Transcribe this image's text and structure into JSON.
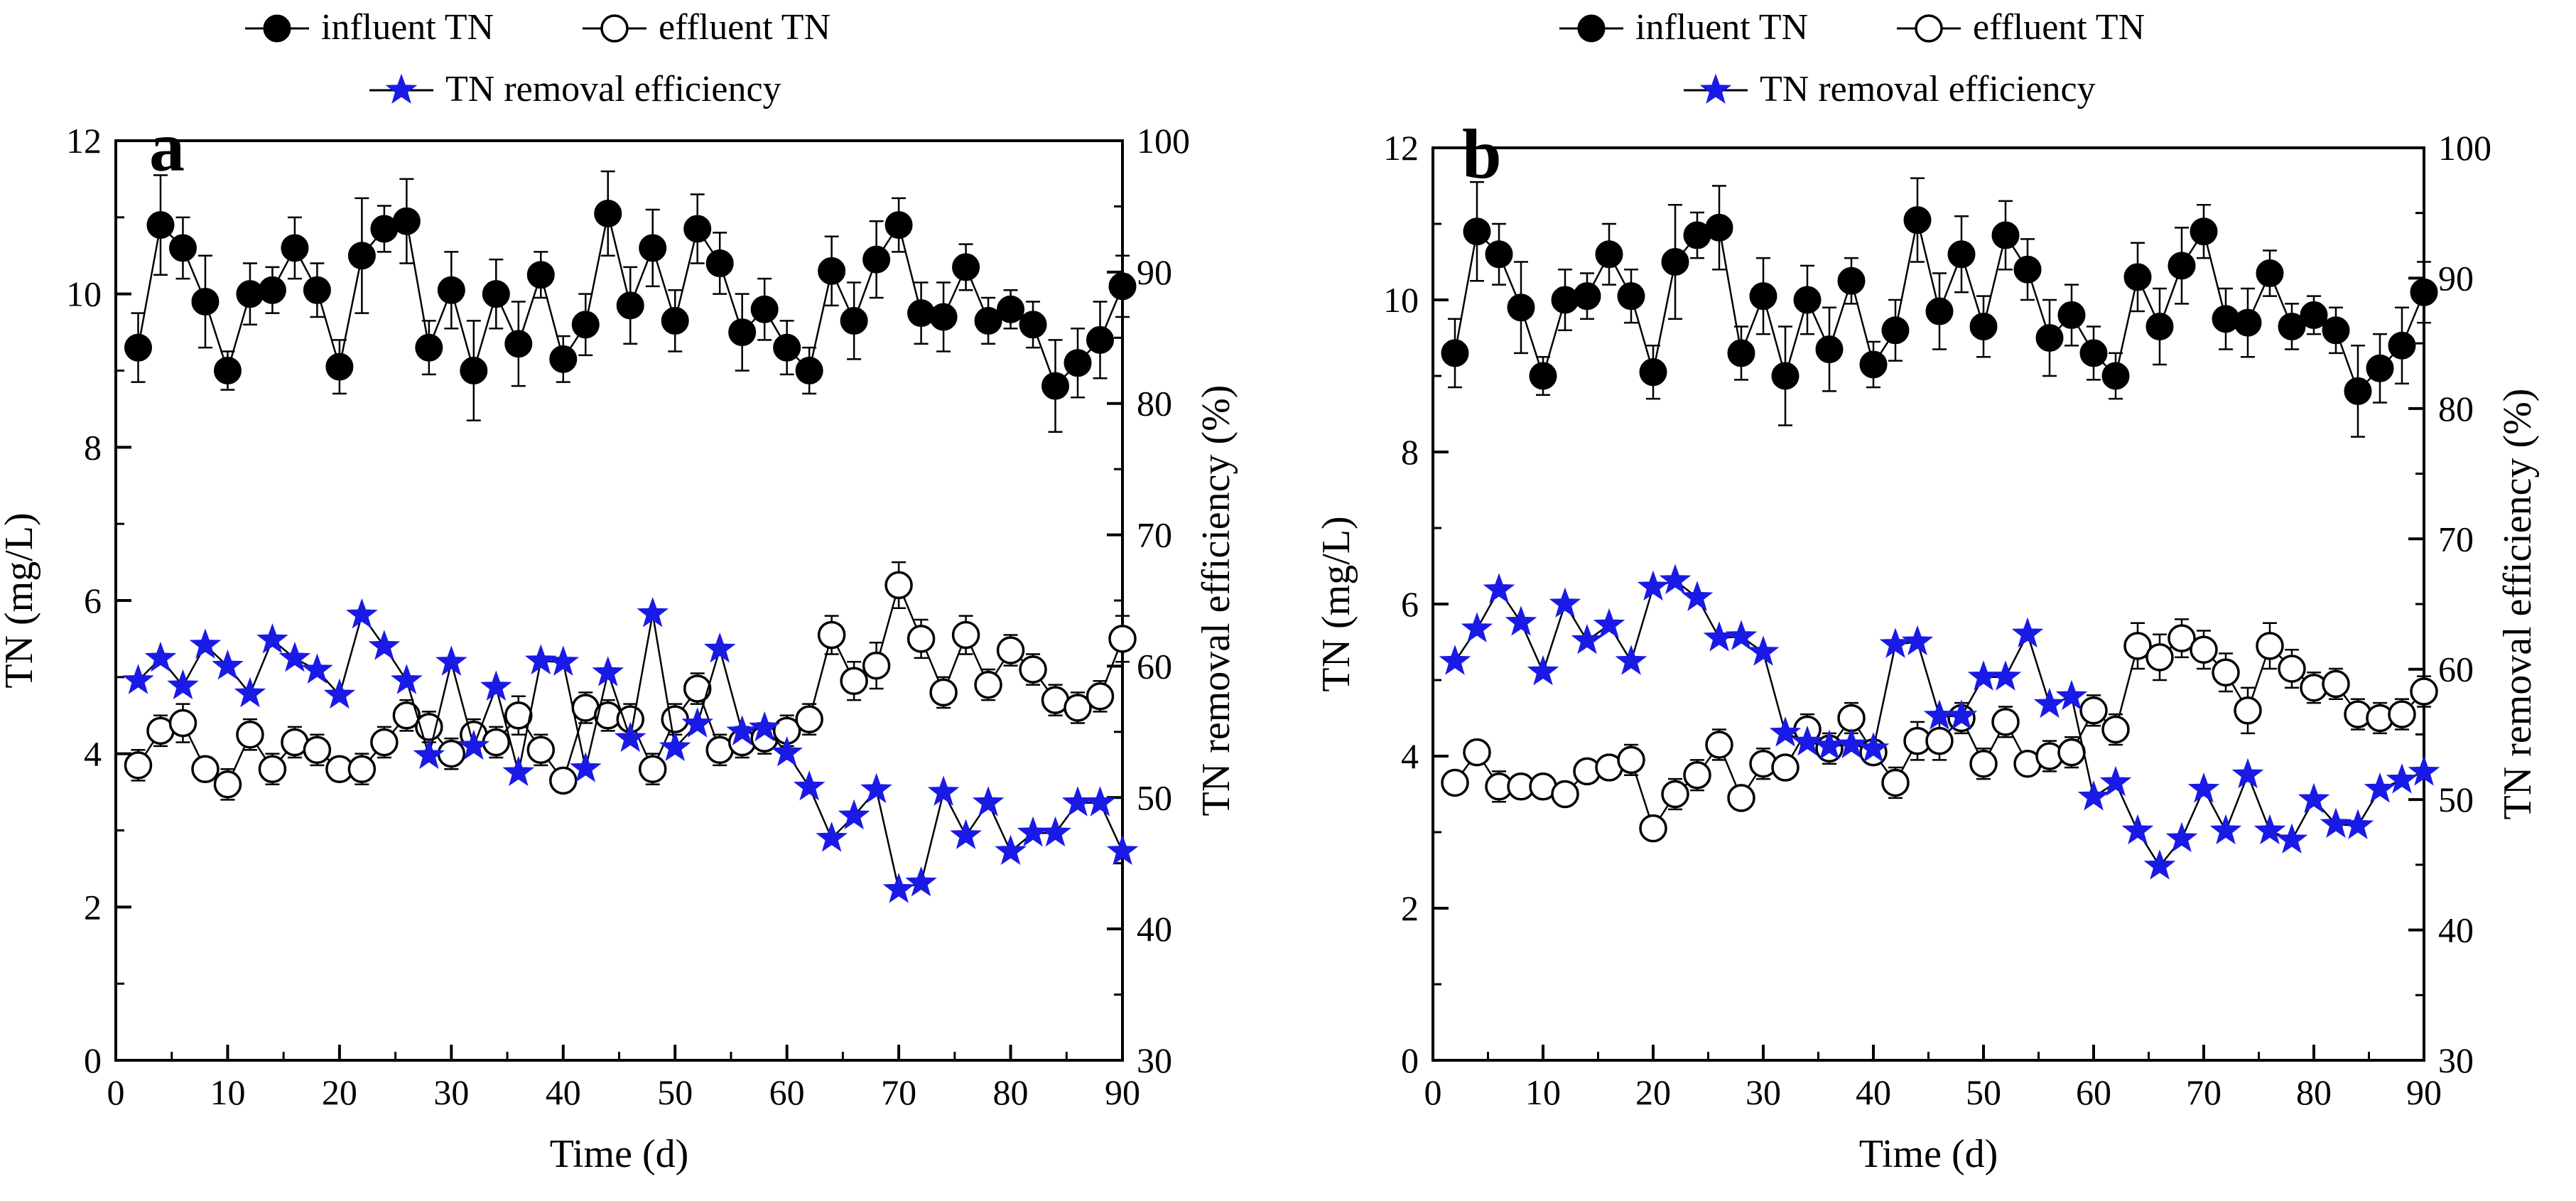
{
  "colors": {
    "influent": "#000000",
    "effluent": "#ffffff",
    "efficiency": "#1a1ae6"
  },
  "legend": {
    "influent": "influent TN",
    "effluent": "effluent TN",
    "efficiency": "TN removal efficiency"
  },
  "chart_data": [
    {
      "type": "line",
      "panel_label": "a",
      "xlabel": "Time (d)",
      "ylabel_left": "TN (mg/L)",
      "ylabel_right": "TN removal efficiency (%)",
      "xlim": [
        0,
        90
      ],
      "ylim_left": [
        0,
        12
      ],
      "ylim_right": [
        30,
        100
      ],
      "x_ticks": [
        0,
        10,
        20,
        30,
        40,
        50,
        60,
        70,
        80,
        90
      ],
      "y_left_ticks": [
        0,
        2,
        4,
        6,
        8,
        10,
        12
      ],
      "y_right_ticks": [
        30,
        40,
        50,
        60,
        70,
        80,
        90,
        100
      ],
      "legend_position": "top",
      "series": [
        {
          "name": "influent TN",
          "axis": "left",
          "marker": "filled-circle",
          "x": [
            2,
            4,
            6,
            8,
            10,
            12,
            14,
            16,
            18,
            20,
            22,
            24,
            26,
            28,
            30,
            32,
            34,
            36,
            38,
            40,
            42,
            44,
            46,
            48,
            50,
            52,
            54,
            56,
            58,
            60,
            62,
            64,
            66,
            68,
            70,
            72,
            74,
            76,
            78,
            80,
            82,
            84,
            86,
            88,
            90
          ],
          "y": [
            9.3,
            10.9,
            10.6,
            9.9,
            9.0,
            10.0,
            10.05,
            10.6,
            10.05,
            9.05,
            10.5,
            10.85,
            10.95,
            9.3,
            10.05,
            9.0,
            10.0,
            9.35,
            10.25,
            9.15,
            9.6,
            11.05,
            9.85,
            10.6,
            9.65,
            10.85,
            10.4,
            9.5,
            9.8,
            9.3,
            9.0,
            10.3,
            9.65,
            10.45,
            10.9,
            9.75,
            9.7,
            10.35,
            9.65,
            9.8,
            9.6,
            8.8,
            9.1,
            9.4,
            10.1
          ],
          "err": [
            0.45,
            0.65,
            0.4,
            0.6,
            0.25,
            0.4,
            0.3,
            0.4,
            0.35,
            0.35,
            0.75,
            0.3,
            0.55,
            0.35,
            0.5,
            0.65,
            0.45,
            0.55,
            0.3,
            0.3,
            0.4,
            0.55,
            0.5,
            0.5,
            0.4,
            0.45,
            0.4,
            0.5,
            0.4,
            0.35,
            0.3,
            0.45,
            0.5,
            0.5,
            0.35,
            0.4,
            0.45,
            0.3,
            0.3,
            0.25,
            0.3,
            0.6,
            0.45,
            0.5,
            0.4
          ]
        },
        {
          "name": "effluent TN",
          "axis": "left",
          "marker": "open-circle",
          "x": [
            2,
            4,
            6,
            8,
            10,
            12,
            14,
            16,
            18,
            20,
            22,
            24,
            26,
            28,
            30,
            32,
            34,
            36,
            38,
            40,
            42,
            44,
            46,
            48,
            50,
            52,
            54,
            56,
            58,
            60,
            62,
            64,
            66,
            68,
            70,
            72,
            74,
            76,
            78,
            80,
            82,
            84,
            86,
            88,
            90
          ],
          "y": [
            3.85,
            4.3,
            4.4,
            3.8,
            3.6,
            4.25,
            3.8,
            4.15,
            4.05,
            3.8,
            3.8,
            4.15,
            4.5,
            4.35,
            4.0,
            4.25,
            4.15,
            4.5,
            4.05,
            3.65,
            4.6,
            4.5,
            4.45,
            3.8,
            4.45,
            4.85,
            4.05,
            4.15,
            4.2,
            4.3,
            4.45,
            5.55,
            4.95,
            5.15,
            6.2,
            5.5,
            4.8,
            5.55,
            4.9,
            5.35,
            5.1,
            4.7,
            4.6,
            4.75,
            5.5
          ],
          "err": [
            0.2,
            0.2,
            0.25,
            0.15,
            0.2,
            0.2,
            0.2,
            0.2,
            0.2,
            0.15,
            0.2,
            0.2,
            0.2,
            0.2,
            0.2,
            0.2,
            0.2,
            0.25,
            0.2,
            0.15,
            0.2,
            0.2,
            0.2,
            0.2,
            0.2,
            0.2,
            0.2,
            0.2,
            0.2,
            0.2,
            0.2,
            0.25,
            0.25,
            0.3,
            0.3,
            0.25,
            0.2,
            0.25,
            0.2,
            0.2,
            0.2,
            0.2,
            0.2,
            0.2,
            0.3
          ]
        },
        {
          "name": "TN removal efficiency",
          "axis": "right",
          "marker": "star",
          "x": [
            2,
            4,
            6,
            8,
            10,
            12,
            14,
            16,
            18,
            20,
            22,
            24,
            26,
            28,
            30,
            32,
            34,
            36,
            38,
            40,
            42,
            44,
            46,
            48,
            50,
            52,
            54,
            56,
            58,
            60,
            62,
            64,
            66,
            68,
            70,
            72,
            74,
            76,
            78,
            80,
            82,
            84,
            86,
            88,
            90
          ],
          "y": [
            58.9,
            60.6,
            58.5,
            61.6,
            60.0,
            57.9,
            62.0,
            60.6,
            59.7,
            57.8,
            63.9,
            61.5,
            58.9,
            53.2,
            60.3,
            53.9,
            58.4,
            51.9,
            60.4,
            60.3,
            52.2,
            59.5,
            54.5,
            64.0,
            53.8,
            55.6,
            61.3,
            55.0,
            55.3,
            53.4,
            50.8,
            46.9,
            48.6,
            50.6,
            43.0,
            43.5,
            50.4,
            47.1,
            49.6,
            45.9,
            47.3,
            47.3,
            49.6,
            49.6,
            45.9
          ]
        }
      ]
    },
    {
      "type": "line",
      "panel_label": "b",
      "xlabel": "Time (d)",
      "ylabel_left": "TN (mg/L)",
      "ylabel_right": "TN removal efficiency (%)",
      "xlim": [
        0,
        90
      ],
      "ylim_left": [
        0,
        12
      ],
      "ylim_right": [
        30,
        100
      ],
      "x_ticks": [
        0,
        10,
        20,
        30,
        40,
        50,
        60,
        70,
        80,
        90
      ],
      "y_left_ticks": [
        0,
        2,
        4,
        6,
        8,
        10,
        12
      ],
      "y_right_ticks": [
        30,
        40,
        50,
        60,
        70,
        80,
        90,
        100
      ],
      "legend_position": "top",
      "series": [
        {
          "name": "influent TN",
          "axis": "left",
          "marker": "filled-circle",
          "x": [
            2,
            4,
            6,
            8,
            10,
            12,
            14,
            16,
            18,
            20,
            22,
            24,
            26,
            28,
            30,
            32,
            34,
            36,
            38,
            40,
            42,
            44,
            46,
            48,
            50,
            52,
            54,
            56,
            58,
            60,
            62,
            64,
            66,
            68,
            70,
            72,
            74,
            76,
            78,
            80,
            82,
            84,
            86,
            88,
            90
          ],
          "y": [
            9.3,
            10.9,
            10.6,
            9.9,
            9.0,
            10.0,
            10.05,
            10.6,
            10.05,
            9.05,
            10.5,
            10.85,
            10.95,
            9.3,
            10.05,
            9.0,
            10.0,
            9.35,
            10.25,
            9.15,
            9.6,
            11.05,
            9.85,
            10.6,
            9.65,
            10.85,
            10.4,
            9.5,
            9.8,
            9.3,
            9.0,
            10.3,
            9.65,
            10.45,
            10.9,
            9.75,
            9.7,
            10.35,
            9.65,
            9.8,
            9.6,
            8.8,
            9.1,
            9.4,
            10.1
          ],
          "err": [
            0.45,
            0.65,
            0.4,
            0.6,
            0.25,
            0.4,
            0.3,
            0.4,
            0.35,
            0.35,
            0.75,
            0.3,
            0.55,
            0.35,
            0.5,
            0.65,
            0.45,
            0.55,
            0.3,
            0.3,
            0.4,
            0.55,
            0.5,
            0.5,
            0.4,
            0.45,
            0.4,
            0.5,
            0.4,
            0.35,
            0.3,
            0.45,
            0.5,
            0.5,
            0.35,
            0.4,
            0.45,
            0.3,
            0.3,
            0.25,
            0.3,
            0.6,
            0.45,
            0.5,
            0.4
          ]
        },
        {
          "name": "effluent TN",
          "axis": "left",
          "marker": "open-circle",
          "x": [
            2,
            4,
            6,
            8,
            10,
            12,
            14,
            16,
            18,
            20,
            22,
            24,
            26,
            28,
            30,
            32,
            34,
            36,
            38,
            40,
            42,
            44,
            46,
            48,
            50,
            52,
            54,
            56,
            58,
            60,
            62,
            64,
            66,
            68,
            70,
            72,
            74,
            76,
            78,
            80,
            82,
            84,
            86,
            88,
            90
          ],
          "y": [
            3.65,
            4.05,
            3.6,
            3.6,
            3.6,
            3.5,
            3.8,
            3.85,
            3.95,
            3.05,
            3.5,
            3.75,
            4.15,
            3.45,
            3.9,
            3.85,
            4.35,
            4.1,
            4.5,
            4.05,
            3.65,
            4.2,
            4.2,
            4.5,
            3.9,
            4.45,
            3.9,
            4.0,
            4.05,
            4.6,
            4.35,
            5.45,
            5.3,
            5.55,
            5.4,
            5.1,
            4.6,
            5.45,
            5.15,
            4.9,
            4.95,
            4.55,
            4.5,
            4.55,
            4.85
          ],
          "err": [
            0.15,
            0.15,
            0.2,
            0.15,
            0.15,
            0.15,
            0.15,
            0.15,
            0.2,
            0.15,
            0.2,
            0.2,
            0.2,
            0.15,
            0.2,
            0.15,
            0.2,
            0.2,
            0.2,
            0.15,
            0.2,
            0.25,
            0.25,
            0.2,
            0.2,
            0.2,
            0.15,
            0.2,
            0.2,
            0.2,
            0.2,
            0.3,
            0.3,
            0.25,
            0.25,
            0.25,
            0.3,
            0.3,
            0.25,
            0.2,
            0.2,
            0.2,
            0.2,
            0.2,
            0.2
          ]
        },
        {
          "name": "TN removal efficiency",
          "axis": "right",
          "marker": "star",
          "x": [
            2,
            4,
            6,
            8,
            10,
            12,
            14,
            16,
            18,
            20,
            22,
            24,
            26,
            28,
            30,
            32,
            34,
            36,
            38,
            40,
            42,
            44,
            46,
            48,
            50,
            52,
            54,
            56,
            58,
            60,
            62,
            64,
            66,
            68,
            70,
            72,
            74,
            76,
            78,
            80,
            82,
            84,
            86,
            88,
            90
          ],
          "y": [
            60.6,
            63.1,
            66.1,
            63.6,
            59.8,
            65.0,
            62.2,
            63.4,
            60.6,
            66.3,
            66.8,
            65.5,
            62.4,
            62.5,
            61.3,
            55.1,
            54.4,
            54.1,
            54.2,
            53.9,
            61.9,
            62.1,
            56.4,
            56.4,
            59.4,
            59.4,
            62.7,
            57.3,
            57.9,
            50.2,
            51.3,
            47.6,
            44.9,
            47.0,
            50.8,
            47.6,
            51.9,
            47.6,
            46.9,
            50.0,
            48.1,
            48.0,
            50.8,
            51.5,
            52.1
          ]
        }
      ]
    }
  ]
}
